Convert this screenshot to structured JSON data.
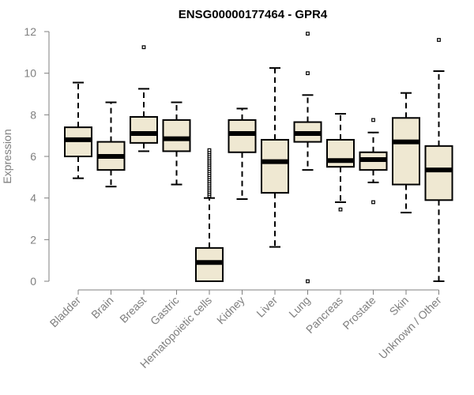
{
  "chart_data": {
    "type": "boxplot",
    "title": "ENSG00000177464 - GPR4",
    "xlabel": "",
    "ylabel": "Expression",
    "ylim": [
      0,
      12
    ],
    "yticks": [
      0,
      2,
      4,
      6,
      8,
      10,
      12
    ],
    "grid": false,
    "legend": "none",
    "box_fill": "#efe8d2",
    "categories": [
      "Bladder",
      "Brain",
      "Breast",
      "Gastric",
      "Hematopoietic cells",
      "Kidney",
      "Liver",
      "Lung",
      "Pancreas",
      "Prostate",
      "Skin",
      "Unknown / Other"
    ],
    "boxes": [
      {
        "name": "Bladder",
        "whisker_low": 4.95,
        "q1": 6.0,
        "median": 6.8,
        "q3": 7.4,
        "whisker_high": 9.55,
        "outliers": []
      },
      {
        "name": "Brain",
        "whisker_low": 4.55,
        "q1": 5.35,
        "median": 6.0,
        "q3": 6.7,
        "whisker_high": 8.6,
        "outliers": []
      },
      {
        "name": "Breast",
        "whisker_low": 6.25,
        "q1": 6.65,
        "median": 7.1,
        "q3": 7.9,
        "whisker_high": 9.25,
        "outliers": [
          11.25
        ]
      },
      {
        "name": "Gastric",
        "whisker_low": 4.65,
        "q1": 6.25,
        "median": 6.85,
        "q3": 7.75,
        "whisker_high": 8.6,
        "outliers": []
      },
      {
        "name": "Hematopoietic cells",
        "whisker_low": 0.0,
        "q1": 0.0,
        "median": 0.9,
        "q3": 1.6,
        "whisker_high": 4.0,
        "outliers": [
          4.1,
          4.2,
          4.3,
          4.4,
          4.5,
          4.6,
          4.7,
          4.8,
          4.9,
          5.0,
          5.1,
          5.2,
          5.3,
          5.4,
          5.5,
          5.6,
          5.7,
          5.8,
          5.9,
          6.0,
          6.1,
          6.2,
          6.3
        ]
      },
      {
        "name": "Kidney",
        "whisker_low": 3.95,
        "q1": 6.2,
        "median": 7.1,
        "q3": 7.75,
        "whisker_high": 8.3,
        "outliers": []
      },
      {
        "name": "Liver",
        "whisker_low": 1.65,
        "q1": 4.25,
        "median": 5.75,
        "q3": 6.8,
        "whisker_high": 10.25,
        "outliers": []
      },
      {
        "name": "Lung",
        "whisker_low": 5.35,
        "q1": 6.7,
        "median": 7.1,
        "q3": 7.65,
        "whisker_high": 8.95,
        "outliers": [
          0.0,
          10.0,
          11.9
        ]
      },
      {
        "name": "Pancreas",
        "whisker_low": 3.8,
        "q1": 5.5,
        "median": 5.8,
        "q3": 6.8,
        "whisker_high": 8.05,
        "outliers": [
          3.45
        ]
      },
      {
        "name": "Prostate",
        "whisker_low": 4.75,
        "q1": 5.35,
        "median": 5.85,
        "q3": 6.2,
        "whisker_high": 7.15,
        "outliers": [
          3.8,
          7.75
        ]
      },
      {
        "name": "Skin",
        "whisker_low": 3.3,
        "q1": 4.65,
        "median": 6.7,
        "q3": 7.85,
        "whisker_high": 9.05,
        "outliers": []
      },
      {
        "name": "Unknown / Other",
        "whisker_low": 0.0,
        "q1": 3.9,
        "median": 5.35,
        "q3": 6.5,
        "whisker_high": 10.1,
        "outliers": [
          11.6
        ]
      }
    ]
  }
}
